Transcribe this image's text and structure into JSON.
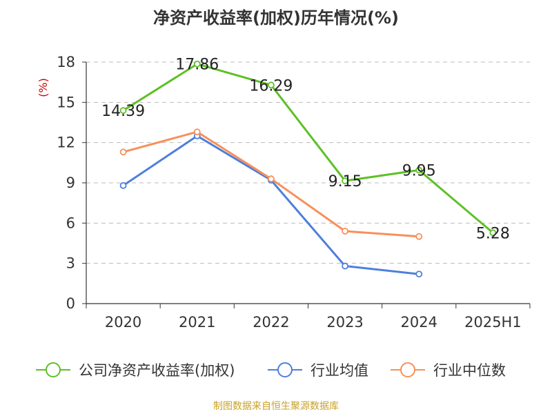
{
  "source": "制图数据来自恒生聚源数据库",
  "chart_data": {
    "type": "line",
    "title": "净资产收益率(加权)历年情况(%)",
    "ylabel": "(%)",
    "xlabel": "",
    "categories": [
      "2020",
      "2021",
      "2022",
      "2023",
      "2024",
      "2025H1"
    ],
    "ylim": [
      0,
      18
    ],
    "yticks": [
      0,
      3,
      6,
      9,
      12,
      15,
      18
    ],
    "grid": "horizontal-dashed",
    "legend_position": "bottom",
    "series": [
      {
        "name": "公司净资产收益率(加权)",
        "color": "#5cc026",
        "labeled": true,
        "values": [
          14.39,
          17.86,
          16.29,
          9.15,
          9.95,
          5.28
        ],
        "labels": [
          "14.39",
          "17.86",
          "16.29",
          "9.15",
          "9.95",
          "5.28"
        ]
      },
      {
        "name": "行业均值",
        "color": "#4e7fdb",
        "labeled": false,
        "values": [
          8.8,
          12.5,
          9.2,
          2.8,
          2.2,
          null
        ]
      },
      {
        "name": "行业中位数",
        "color": "#f79059",
        "labeled": false,
        "values": [
          11.3,
          12.8,
          9.3,
          5.4,
          5.0,
          null
        ]
      }
    ]
  }
}
